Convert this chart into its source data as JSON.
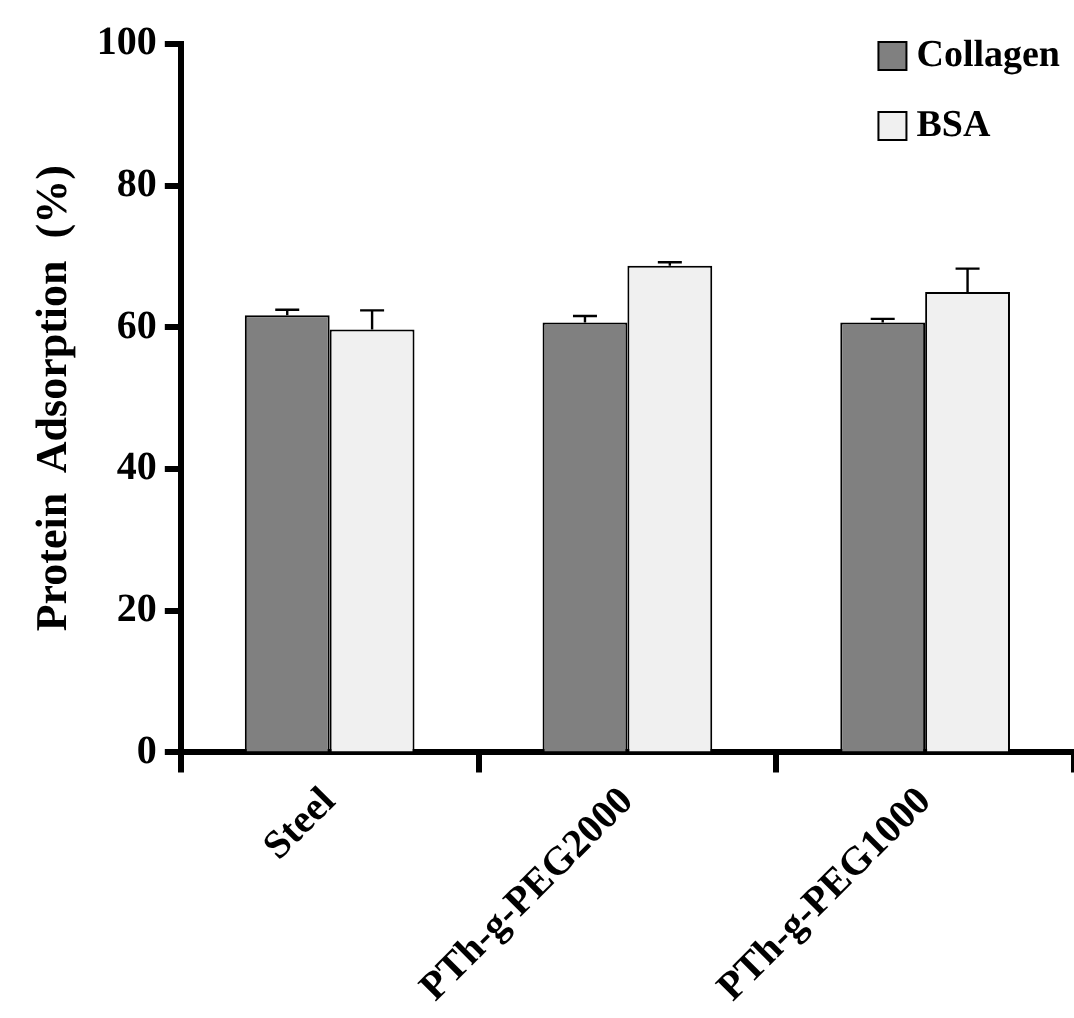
{
  "chart_data": {
    "type": "bar",
    "ylabel": "Protein  Adsorption  (%)",
    "categories": [
      "Steel",
      "PTh-g-PEG2000",
      "PTh-g-PEG1000"
    ],
    "series": [
      {
        "name": "Collagen",
        "color": "#808080",
        "values": [
          61.7,
          60.7,
          60.7
        ],
        "errors": [
          [
            61.7,
            62.5
          ],
          [
            60.7,
            61.6
          ],
          [
            60.7,
            61.2
          ]
        ]
      },
      {
        "name": "BSA",
        "color": "#f0f0f0",
        "values": [
          59.7,
          68.7,
          65.0
        ],
        "errors": [
          [
            59.7,
            62.4
          ],
          [
            68.7,
            69.2
          ],
          [
            65.0,
            68.3
          ]
        ]
      }
    ],
    "ylim": [
      0,
      100
    ],
    "yticks": [
      0,
      20,
      40,
      60,
      80,
      100
    ],
    "grid": false,
    "legend": "top right"
  }
}
